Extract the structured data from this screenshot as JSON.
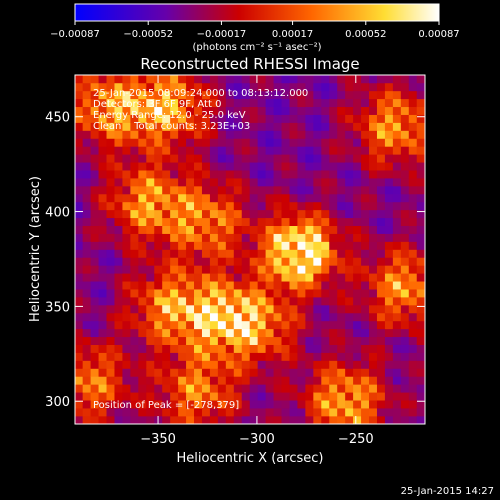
{
  "chart_data": {
    "type": "heatmap",
    "title": "Reconstructed RHESSI Image",
    "xlabel": "Heliocentric X (arcsec)",
    "ylabel": "Heliocentric Y (arcsec)",
    "xlim": [
      -392,
      -215
    ],
    "ylim": [
      288,
      472
    ],
    "x_ticks": [
      -350,
      -300,
      -250
    ],
    "y_ticks": [
      300,
      350,
      400,
      450
    ],
    "x_tick_labels": [
      "−350",
      "−300",
      "−250"
    ],
    "y_tick_labels": [
      "300",
      "350",
      "400",
      "450"
    ],
    "colorbar": {
      "ticks": [
        -0.00087,
        -0.00052,
        -0.00017,
        0.00017,
        0.00052,
        0.00087
      ],
      "tick_labels": [
        "−0.00087",
        "−0.00052",
        "−0.00017",
        "0.00017",
        "0.00052",
        "0.00087"
      ],
      "unit_label": "(photons cm⁻² s⁻¹ asec⁻²)",
      "colormap": [
        "#0000ff",
        "#6600aa",
        "#cc0000",
        "#ff6600",
        "#ffdd33",
        "#ffffff"
      ]
    },
    "peak": {
      "x": -278,
      "y": 379
    },
    "bright_regions": [
      {
        "x": -375,
        "y": 455,
        "value": 0.0006
      },
      {
        "x": -345,
        "y": 455,
        "value": 0.0007
      },
      {
        "x": -325,
        "y": 395,
        "value": 0.0005
      },
      {
        "x": -355,
        "y": 405,
        "value": 0.0006
      },
      {
        "x": -345,
        "y": 350,
        "value": 0.0005
      },
      {
        "x": -320,
        "y": 345,
        "value": 0.0006
      },
      {
        "x": -300,
        "y": 340,
        "value": 0.0005
      },
      {
        "x": -278,
        "y": 379,
        "value": 0.00087
      },
      {
        "x": -230,
        "y": 445,
        "value": 0.0006
      },
      {
        "x": -225,
        "y": 360,
        "value": 0.0006
      },
      {
        "x": -255,
        "y": 300,
        "value": 0.0007
      },
      {
        "x": -385,
        "y": 310,
        "value": 0.0005
      },
      {
        "x": -330,
        "y": 305,
        "value": 0.0005
      }
    ]
  },
  "annotations": {
    "line1": "25-Jan-2015 08:09:24.000 to 08:13:12.000",
    "line2": "Detectors: 3F 6F 9F, Att 0",
    "line3": "Energy Range: 12.0 - 25.0 keV",
    "line4": "Clean    Total counts: 3.23E+03",
    "peak_label": "Position of Peak = [-278,379]"
  },
  "footer": {
    "timestamp": "25-Jan-2015 14:27"
  }
}
